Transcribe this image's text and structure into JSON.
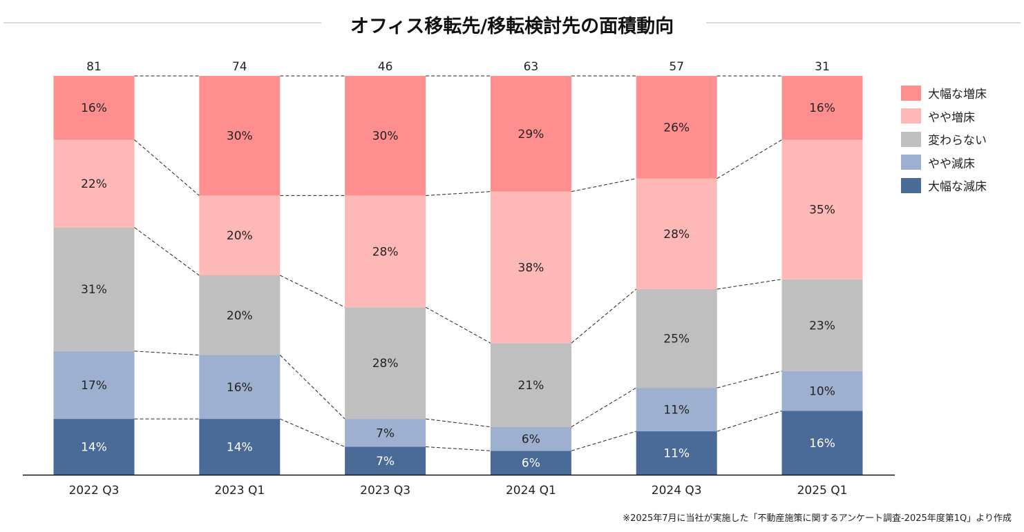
{
  "chart_data": {
    "type": "bar",
    "stacked": true,
    "normalized": true,
    "title": "オフィス移転先/移転検討先の面積動向",
    "categories": [
      "2022 Q3",
      "2023 Q1",
      "2023 Q3",
      "2024 Q1",
      "2024 Q3",
      "2025 Q1"
    ],
    "totals": [
      81,
      74,
      46,
      63,
      57,
      31
    ],
    "series": [
      {
        "name": "大幅な減床",
        "color": "#4A6A98",
        "values": [
          14,
          14,
          7,
          6,
          11,
          16
        ]
      },
      {
        "name": "やや減床",
        "color": "#9DB0CF",
        "values": [
          17,
          16,
          7,
          6,
          11,
          10
        ]
      },
      {
        "name": "変わらない",
        "color": "#BFBFBF",
        "values": [
          31,
          20,
          28,
          21,
          25,
          23
        ]
      },
      {
        "name": "やや増床",
        "color": "#FFB8B8",
        "values": [
          22,
          20,
          28,
          38,
          28,
          35
        ]
      },
      {
        "name": "大幅な増床",
        "color": "#FF8F8F",
        "values": [
          16,
          30,
          30,
          29,
          26,
          16
        ]
      }
    ],
    "value_suffix": "%",
    "legend_position": "right",
    "connector_lines": "dashed",
    "grid": false
  },
  "footnote": "※2025年7月に当社が実施した「不動産施策に関するアンケート調査-2025年度第1Q」より作成"
}
